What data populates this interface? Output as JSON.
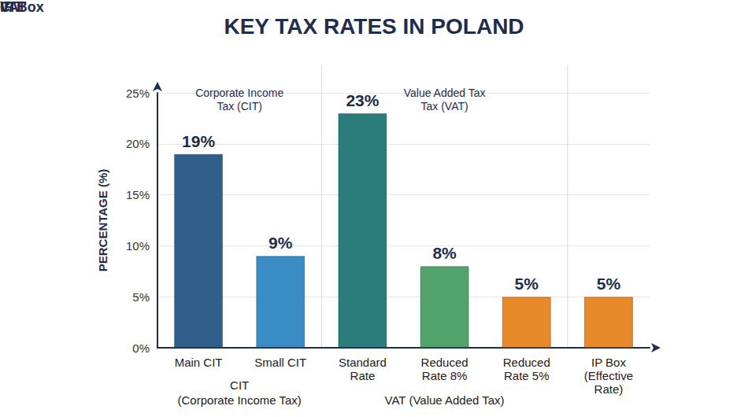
{
  "chart_data": {
    "type": "bar",
    "title": "KEY TAX RATES IN POLAND",
    "y_label": "PERCENTAGE (%)",
    "categories": [
      "Main CIT",
      "Small CIT",
      "Standard Rate",
      "Reduced Rate 8%",
      "Reduced Rate 5%",
      "IP Box (Effective Rate)"
    ],
    "values": [
      19,
      9,
      23,
      8,
      5,
      5
    ],
    "value_labels": [
      "19%",
      "9%",
      "23%",
      "8%",
      "5%",
      "5%"
    ],
    "colors": [
      "#2f5f8a",
      "#3a8cc4",
      "#2a7d7a",
      "#4fa36b",
      "#e98a2a",
      "#e98a2a"
    ],
    "ylim": [
      0,
      25
    ],
    "yticks": [
      {
        "value": 0,
        "label": "0%"
      },
      {
        "value": 5,
        "label": "5%"
      },
      {
        "value": 10,
        "label": "10%"
      },
      {
        "value": 15,
        "label": "15%"
      },
      {
        "value": 20,
        "label": "20%"
      },
      {
        "value": 25,
        "label": "25%"
      }
    ],
    "grid": true,
    "data_labels": true,
    "groups": [
      {
        "heading": "CIT",
        "subheading": "Corporate Income Tax (CIT)",
        "label": "CIT (Corporate Income Tax)",
        "members": [
          "Main CIT",
          "Small CIT"
        ]
      },
      {
        "heading": "VAT",
        "subheading": "Value Added Tax Tax (VAT)",
        "label": "VAT (Value Added Tax)",
        "members": [
          "Standard Rate",
          "Reduced Rate 8%",
          "Reduced Rate 5%"
        ]
      },
      {
        "heading": "IP Box",
        "members": [
          "IP Box (Effective Rate)"
        ]
      }
    ]
  }
}
